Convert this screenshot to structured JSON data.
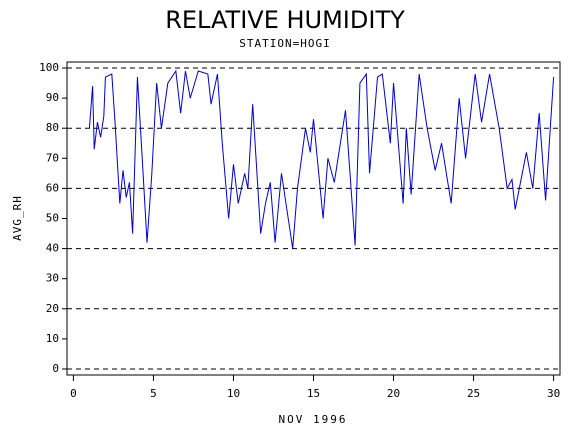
{
  "chart_data": {
    "type": "line",
    "title": "RELATIVE HUMIDITY",
    "subtitle": "STATION=HOGI",
    "xlabel": "NOV 1996",
    "ylabel": "AVG_RH",
    "x": [
      1.0,
      1.2,
      1.3,
      1.5,
      1.7,
      1.9,
      2.0,
      2.4,
      2.6,
      2.9,
      3.1,
      3.3,
      3.5,
      3.7,
      4.0,
      4.3,
      4.6,
      4.9,
      5.2,
      5.5,
      5.9,
      6.4,
      6.7,
      7.0,
      7.3,
      7.8,
      8.4,
      8.6,
      9.0,
      9.3,
      9.7,
      10.0,
      10.3,
      10.7,
      10.9,
      11.2,
      11.7,
      12.0,
      12.3,
      12.6,
      13.0,
      13.7,
      14.0,
      14.5,
      14.8,
      15.0,
      15.6,
      15.9,
      16.3,
      17.0,
      17.6,
      17.9,
      18.3,
      18.5,
      19.0,
      19.3,
      19.8,
      20.0,
      20.6,
      20.8,
      21.1,
      21.6,
      22.1,
      22.6,
      23.0,
      23.6,
      24.1,
      24.5,
      25.1,
      25.5,
      26.0,
      26.6,
      27.1,
      27.4,
      27.6,
      28.3,
      28.7,
      29.1,
      29.5,
      30.0
    ],
    "series": [
      {
        "name": "AVG_RH",
        "color": "#0000cc",
        "values": [
          80,
          94,
          73,
          82,
          77,
          84,
          97,
          98,
          82,
          55,
          66,
          57,
          62,
          45,
          97,
          70,
          42,
          65,
          95,
          80,
          95,
          99,
          85,
          99,
          90,
          99,
          98,
          88,
          98,
          75,
          50,
          68,
          55,
          65,
          60,
          88,
          45,
          55,
          62,
          42,
          65,
          40,
          60,
          80,
          72,
          83,
          50,
          70,
          62,
          86,
          41,
          95,
          98,
          65,
          97,
          98,
          75,
          95,
          55,
          80,
          58,
          98,
          80,
          66,
          75,
          55,
          90,
          70,
          98,
          82,
          98,
          80,
          60,
          63,
          53,
          72,
          60,
          85,
          56,
          97
        ]
      }
    ],
    "xlim": [
      -0.4,
      30.4
    ],
    "ylim": [
      -2,
      102
    ],
    "xticks": [
      0,
      5,
      10,
      15,
      20,
      25,
      30
    ],
    "yticks": [
      0,
      10,
      20,
      30,
      40,
      50,
      60,
      70,
      80,
      90,
      100
    ],
    "grid": true
  }
}
